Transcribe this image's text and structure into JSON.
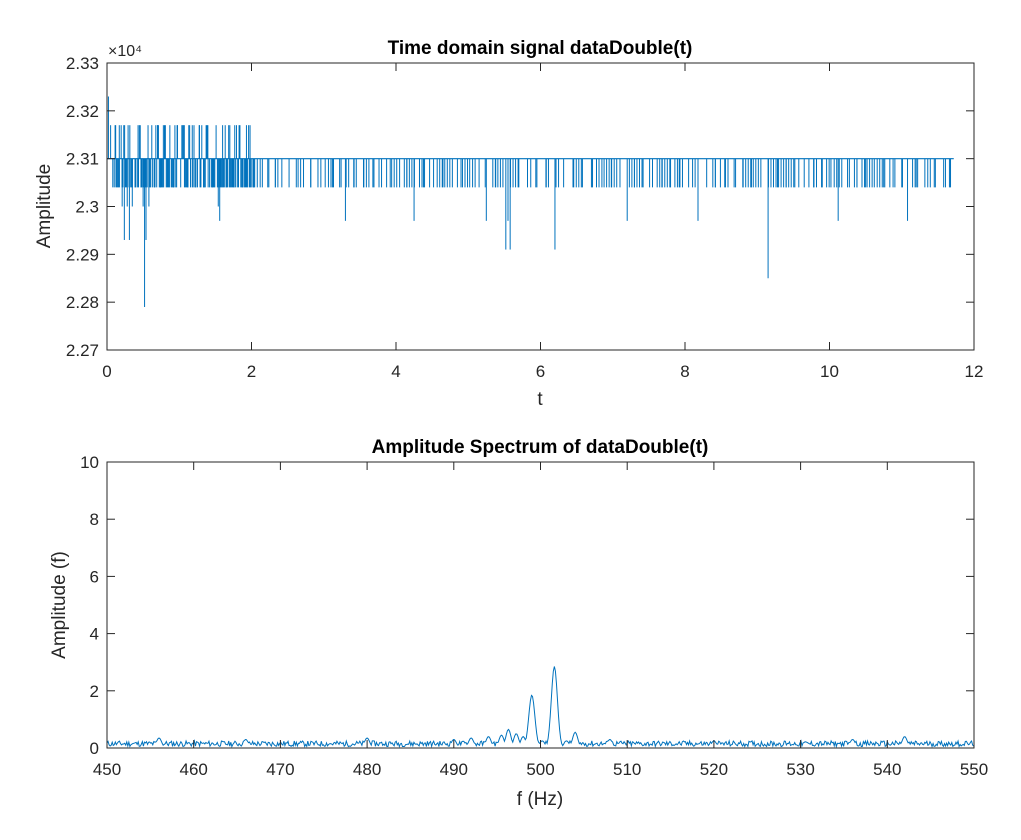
{
  "colors": {
    "line": "#0072BD",
    "axes": "#262626",
    "background": "#ffffff"
  },
  "chart_data": [
    {
      "type": "line",
      "title": "Time domain signal dataDouble(t)",
      "xlabel": "t",
      "ylabel": "Amplitude",
      "xlim": [
        0,
        12
      ],
      "ylim": [
        22700,
        23300
      ],
      "xticks": [
        0,
        2,
        4,
        6,
        8,
        10,
        12
      ],
      "xtick_labels": [
        "0",
        "2",
        "4",
        "6",
        "8",
        "10",
        "12"
      ],
      "yticks": [
        22700,
        22800,
        22900,
        23000,
        23100,
        23200,
        23300
      ],
      "ytick_labels": [
        "2.27",
        "2.28",
        "2.29",
        "2.3",
        "2.31",
        "2.32",
        "2.33"
      ],
      "y_exponent_label": "×10⁴",
      "grid": false,
      "box": true,
      "series": [
        {
          "baseline": 23100,
          "x_end": 11.72,
          "spikes": [
            [
              0.02,
              23230
            ],
            [
              0.05,
              23170
            ],
            [
              0.08,
              23040
            ],
            [
              0.12,
              23170
            ],
            [
              0.17,
              23170
            ],
            [
              0.21,
              23000
            ],
            [
              0.24,
              22930
            ],
            [
              0.28,
              23000
            ],
            [
              0.31,
              22930
            ],
            [
              0.35,
              23000
            ],
            [
              0.39,
              23040
            ],
            [
              0.43,
              23170
            ],
            [
              0.47,
              23040
            ],
            [
              0.5,
              23000
            ],
            [
              0.52,
              22790
            ],
            [
              0.54,
              22930
            ],
            [
              0.58,
              23000
            ],
            [
              0.62,
              23170
            ],
            [
              0.66,
              23040
            ],
            [
              0.7,
              23170
            ],
            [
              0.74,
              23040
            ],
            [
              0.78,
              23170
            ],
            [
              0.82,
              23040
            ],
            [
              0.87,
              23170
            ],
            [
              0.92,
              23040
            ],
            [
              0.97,
              23170
            ],
            [
              1.02,
              23040
            ],
            [
              1.07,
              23170
            ],
            [
              1.12,
              23040
            ],
            [
              1.18,
              23170
            ],
            [
              1.23,
              23040
            ],
            [
              1.28,
              23170
            ],
            [
              1.34,
              23040
            ],
            [
              1.4,
              23040
            ],
            [
              1.46,
              23040
            ],
            [
              1.51,
              23170
            ],
            [
              1.54,
              23000
            ],
            [
              1.56,
              22970
            ],
            [
              1.6,
              23170
            ],
            [
              1.65,
              23040
            ],
            [
              1.7,
              23170
            ],
            [
              1.76,
              23040
            ],
            [
              1.82,
              23040
            ],
            [
              1.88,
              23040
            ],
            [
              1.93,
              23170
            ],
            [
              1.98,
              23170
            ],
            [
              2.03,
              23040
            ],
            [
              2.08,
              23040
            ],
            [
              2.15,
              23040
            ],
            [
              2.24,
              23040
            ],
            [
              2.33,
              23040
            ],
            [
              2.42,
              23040
            ],
            [
              2.52,
              23040
            ],
            [
              2.62,
              23040
            ],
            [
              2.72,
              23040
            ],
            [
              2.82,
              23040
            ],
            [
              2.92,
              23040
            ],
            [
              3.02,
              23040
            ],
            [
              3.12,
              23040
            ],
            [
              3.22,
              23040
            ],
            [
              3.3,
              22970
            ],
            [
              3.42,
              23040
            ],
            [
              3.55,
              23040
            ],
            [
              3.68,
              23040
            ],
            [
              3.8,
              23040
            ],
            [
              3.92,
              23040
            ],
            [
              4.05,
              23040
            ],
            [
              4.15,
              23040
            ],
            [
              4.25,
              22970
            ],
            [
              4.38,
              23040
            ],
            [
              4.52,
              23040
            ],
            [
              4.65,
              23040
            ],
            [
              4.78,
              23040
            ],
            [
              4.9,
              23040
            ],
            [
              5.02,
              23040
            ],
            [
              5.15,
              23040
            ],
            [
              5.25,
              22970
            ],
            [
              5.38,
              23040
            ],
            [
              5.48,
              23040
            ],
            [
              5.52,
              22910
            ],
            [
              5.55,
              22970
            ],
            [
              5.58,
              22910
            ],
            [
              5.7,
              23040
            ],
            [
              5.82,
              23040
            ],
            [
              5.95,
              23040
            ],
            [
              6.08,
              23040
            ],
            [
              6.2,
              22910
            ],
            [
              6.32,
              23040
            ],
            [
              6.45,
              23040
            ],
            [
              6.58,
              23040
            ],
            [
              6.72,
              23040
            ],
            [
              6.85,
              23040
            ],
            [
              6.98,
              23040
            ],
            [
              7.1,
              23040
            ],
            [
              7.2,
              22970
            ],
            [
              7.3,
              23040
            ],
            [
              7.42,
              23040
            ],
            [
              7.55,
              23040
            ],
            [
              7.68,
              23040
            ],
            [
              7.8,
              23040
            ],
            [
              7.92,
              23040
            ],
            [
              8.05,
              23040
            ],
            [
              8.18,
              22970
            ],
            [
              8.3,
              23040
            ],
            [
              8.42,
              23040
            ],
            [
              8.55,
              23040
            ],
            [
              8.68,
              23040
            ],
            [
              8.8,
              23040
            ],
            [
              8.92,
              23040
            ],
            [
              9.05,
              23040
            ],
            [
              9.15,
              22850
            ],
            [
              9.28,
              23040
            ],
            [
              9.4,
              23040
            ],
            [
              9.52,
              23040
            ],
            [
              9.65,
              23040
            ],
            [
              9.78,
              23040
            ],
            [
              9.9,
              23040
            ],
            [
              10.02,
              23040
            ],
            [
              10.12,
              22970
            ],
            [
              10.25,
              23040
            ],
            [
              10.38,
              23040
            ],
            [
              10.5,
              23040
            ],
            [
              10.62,
              23040
            ],
            [
              10.75,
              23040
            ],
            [
              10.88,
              23040
            ],
            [
              11.0,
              23040
            ],
            [
              11.08,
              22970
            ],
            [
              11.2,
              23040
            ],
            [
              11.32,
              23040
            ],
            [
              11.45,
              23040
            ],
            [
              11.58,
              23040
            ],
            [
              11.66,
              23040
            ]
          ]
        }
      ]
    },
    {
      "type": "line",
      "title": "Amplitude Spectrum of dataDouble(t)",
      "xlabel": "f (Hz)",
      "ylabel": "Amplitude (f)",
      "xlim": [
        450,
        550
      ],
      "ylim": [
        0,
        10
      ],
      "xticks": [
        450,
        460,
        470,
        480,
        490,
        500,
        510,
        520,
        530,
        540,
        550
      ],
      "xtick_labels": [
        "450",
        "460",
        "470",
        "480",
        "490",
        "500",
        "510",
        "520",
        "530",
        "540",
        "550"
      ],
      "yticks": [
        0,
        2,
        4,
        6,
        8,
        10
      ],
      "ytick_labels": [
        "0",
        "2",
        "4",
        "6",
        "8",
        "10"
      ],
      "grid": false,
      "box": true,
      "series": [
        {
          "noise_floor": 0.15,
          "peaks": [
            [
              456,
              0.35
            ],
            [
              466,
              0.3
            ],
            [
              480,
              0.35
            ],
            [
              490,
              0.3
            ],
            [
              492,
              0.35
            ],
            [
              494,
              0.4
            ],
            [
              495.5,
              0.45
            ],
            [
              496.3,
              0.65
            ],
            [
              497.2,
              0.5
            ],
            [
              498,
              0.4
            ],
            [
              499,
              1.85
            ],
            [
              500.2,
              0.25
            ],
            [
              501.6,
              2.85
            ],
            [
              503,
              0.25
            ],
            [
              504,
              0.55
            ],
            [
              508,
              0.3
            ],
            [
              520,
              0.25
            ],
            [
              536,
              0.3
            ],
            [
              542,
              0.4
            ]
          ]
        }
      ]
    }
  ]
}
